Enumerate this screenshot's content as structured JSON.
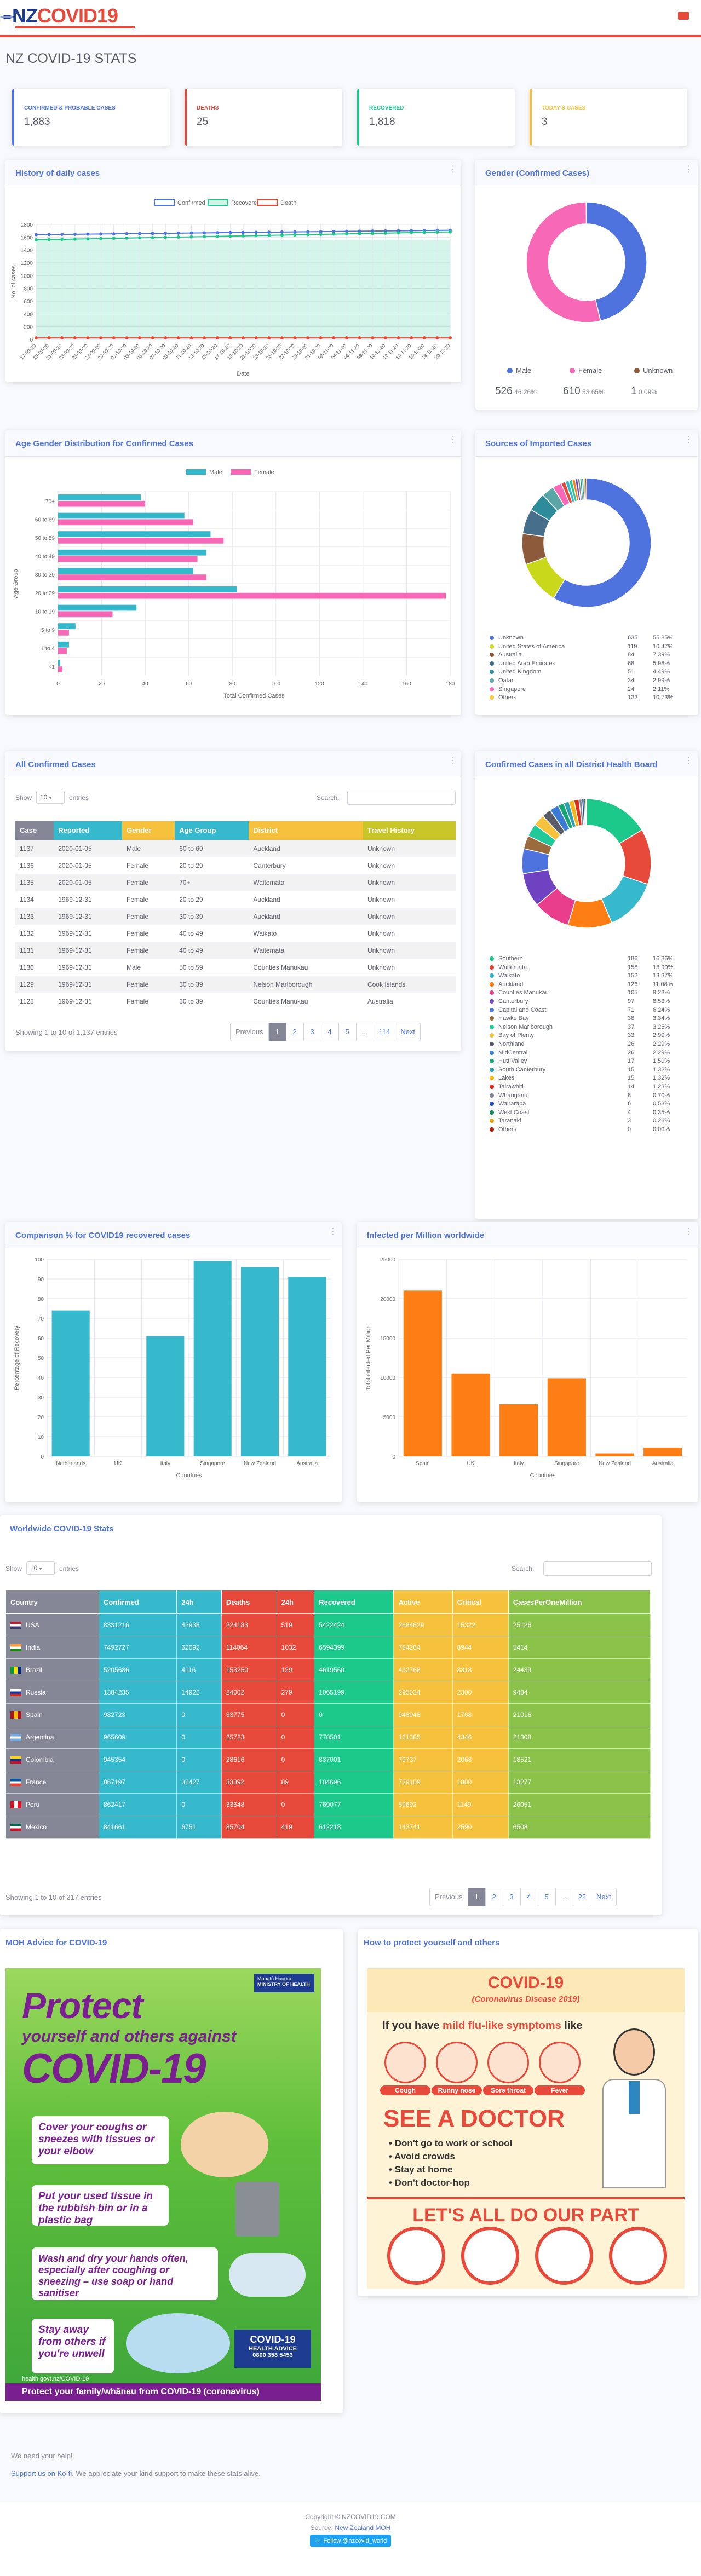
{
  "brand": {
    "nz": "NZ",
    "covid": "COVID19",
    "logo_icon": "fern-icon",
    "flag_icon": "flag-icon"
  },
  "page_title": "NZ COVID-19 STATS",
  "stats": [
    {
      "label": "CONFIRMED & PROBABLE CASES",
      "value": "1,883",
      "color": "#4e73df"
    },
    {
      "label": "DEATHS",
      "value": "25",
      "color": "#e74a3b"
    },
    {
      "label": "RECOVERED",
      "value": "1,818",
      "color": "#1cc88a"
    },
    {
      "label": "TODAY'S CASES",
      "value": "3",
      "color": "#f6c23e"
    }
  ],
  "daily": {
    "title": "History of daily cases",
    "legend": [
      "Confirmed",
      "Recovered",
      "Death"
    ],
    "xlabel": "Date",
    "ylabel": "No. of cases",
    "yticks": [
      "0",
      "200",
      "400",
      "600",
      "800",
      "1000",
      "1200",
      "1400",
      "1600",
      "1800"
    ],
    "xticks": [
      "17-09-20",
      "19-09-20",
      "21-09-20",
      "23-09-20",
      "25-09-20",
      "27-09-20",
      "29-09-20",
      "01-10-20",
      "03-10-20",
      "05-10-20",
      "07-10-20",
      "09-10-20",
      "11-10-20",
      "13-10-20",
      "15-10-20",
      "17-10-20",
      "19-10-20",
      "21-10-20",
      "23-10-20",
      "25-10-20",
      "27-10-20",
      "29-10-20",
      "31-10-20",
      "02-11-20",
      "04-11-20",
      "06-11-20",
      "08-11-20",
      "10-11-20",
      "12-11-20",
      "14-11-20",
      "16-11-20",
      "18-11-20",
      "20-11-20"
    ]
  },
  "gender": {
    "title": "Gender (Confirmed Cases)",
    "items": [
      {
        "name": "Male",
        "count": "526",
        "pct": "46.26%",
        "color": "#4e73df"
      },
      {
        "name": "Female",
        "count": "610",
        "pct": "53.65%",
        "color": "#f769b6"
      },
      {
        "name": "Unknown",
        "count": "1",
        "pct": "0.09%",
        "color": "#8e5a3c"
      }
    ]
  },
  "agegender": {
    "title": "Age Gender Distribution for Confirmed Cases",
    "legend": [
      "Male",
      "Female"
    ],
    "xlabel": "Total Confirmed Cases",
    "ylabel": "Age Group",
    "xticks": [
      "0",
      "20",
      "40",
      "60",
      "80",
      "100",
      "120",
      "140",
      "160",
      "180"
    ],
    "groups": [
      "70+",
      "60 to 69",
      "50 to 59",
      "40 to 49",
      "30 to 39",
      "20 to 29",
      "10 to 19",
      "5 to 9",
      "1 to 4",
      "<1"
    ]
  },
  "imported": {
    "title": "Sources of Imported Cases",
    "items": [
      {
        "name": "Unknown",
        "count": "635",
        "pct": "55.85%",
        "color": "#4e73df"
      },
      {
        "name": "United States of America",
        "count": "119",
        "pct": "10.47%",
        "color": "#c9d81a"
      },
      {
        "name": "Australia",
        "count": "84",
        "pct": "7.39%",
        "color": "#8e5a3c"
      },
      {
        "name": "United Arab Emirates",
        "count": "68",
        "pct": "5.98%",
        "color": "#476f8b"
      },
      {
        "name": "United Kingdom",
        "count": "51",
        "pct": "4.49%",
        "color": "#2e8b9a"
      },
      {
        "name": "Qatar",
        "count": "34",
        "pct": "2.99%",
        "color": "#5aa6a6"
      },
      {
        "name": "Singapore",
        "count": "24",
        "pct": "2.11%",
        "color": "#f769b6"
      },
      {
        "name": "Others",
        "count": "122",
        "pct": "10.73%",
        "color": "#f6c23e"
      }
    ]
  },
  "cases": {
    "title": "All Confirmed Cases",
    "show": "Show",
    "show_value": "10",
    "entries": "entries",
    "search": "Search:",
    "columns": [
      "Case",
      "Reported",
      "Gender",
      "Age Group",
      "District",
      "Travel History"
    ],
    "rows": [
      [
        "1137",
        "2020-01-05",
        "Male",
        "60 to 69",
        "Auckland",
        "Unknown"
      ],
      [
        "1136",
        "2020-01-05",
        "Female",
        "20 to 29",
        "Canterbury",
        "Unknown"
      ],
      [
        "1135",
        "2020-01-05",
        "Female",
        "70+",
        "Waitemata",
        "Unknown"
      ],
      [
        "1134",
        "1969-12-31",
        "Female",
        "20 to 29",
        "Auckland",
        "Unknown"
      ],
      [
        "1133",
        "1969-12-31",
        "Female",
        "30 to 39",
        "Auckland",
        "Unknown"
      ],
      [
        "1132",
        "1969-12-31",
        "Female",
        "40 to 49",
        "Waikato",
        "Unknown"
      ],
      [
        "1131",
        "1969-12-31",
        "Female",
        "40 to 49",
        "Waitemata",
        "Unknown"
      ],
      [
        "1130",
        "1969-12-31",
        "Male",
        "50 to 59",
        "Counties Manukau",
        "Unknown"
      ],
      [
        "1129",
        "1969-12-31",
        "Female",
        "30 to 39",
        "Nelson Marlborough",
        "Cook Islands"
      ],
      [
        "1128",
        "1969-12-31",
        "Female",
        "30 to 39",
        "Counties Manukau",
        "Australia"
      ]
    ],
    "info": "Showing 1 to 10 of 1,137 entries",
    "pager": [
      "Previous",
      "1",
      "2",
      "3",
      "4",
      "5",
      "...",
      "114",
      "Next"
    ]
  },
  "dhb": {
    "title": "Confirmed Cases in all District Health Board",
    "items": [
      {
        "name": "Southern",
        "count": "186",
        "pct": "16.36%",
        "color": "#1cc88a"
      },
      {
        "name": "Waitemata",
        "count": "158",
        "pct": "13.90%",
        "color": "#e74a3b"
      },
      {
        "name": "Waikato",
        "count": "152",
        "pct": "13.37%",
        "color": "#36b9cc"
      },
      {
        "name": "Auckland",
        "count": "126",
        "pct": "11.08%",
        "color": "#fd7e14"
      },
      {
        "name": "Counties Manukau",
        "count": "105",
        "pct": "9.23%",
        "color": "#e83e8c"
      },
      {
        "name": "Canterbury",
        "count": "97",
        "pct": "8.53%",
        "color": "#6f42c1"
      },
      {
        "name": "Capital and Coast",
        "count": "71",
        "pct": "6.24%",
        "color": "#4e73df"
      },
      {
        "name": "Hawke Bay",
        "count": "38",
        "pct": "3.34%",
        "color": "#9a6b3c"
      },
      {
        "name": "Nelson Marlborough",
        "count": "37",
        "pct": "3.25%",
        "color": "#20c997"
      },
      {
        "name": "Bay of Plenty",
        "count": "33",
        "pct": "2.90%",
        "color": "#f6c23e"
      },
      {
        "name": "Northland",
        "count": "26",
        "pct": "2.29%",
        "color": "#5a5c69"
      },
      {
        "name": "MidCentral",
        "count": "26",
        "pct": "2.29%",
        "color": "#3a7bd5"
      },
      {
        "name": "Hutt Valley",
        "count": "17",
        "pct": "1.50%",
        "color": "#17a673"
      },
      {
        "name": "South Canterbury",
        "count": "15",
        "pct": "1.32%",
        "color": "#2c9faf"
      },
      {
        "name": "Lakes",
        "count": "15",
        "pct": "1.32%",
        "color": "#f4b619"
      },
      {
        "name": "Tairawhiti",
        "count": "14",
        "pct": "1.23%",
        "color": "#e02d1b"
      },
      {
        "name": "Whanganui",
        "count": "8",
        "pct": "0.70%",
        "color": "#858796"
      },
      {
        "name": "Wairarapa",
        "count": "6",
        "pct": "0.53%",
        "color": "#224abe"
      },
      {
        "name": "West Coast",
        "count": "4",
        "pct": "0.35%",
        "color": "#13855c"
      },
      {
        "name": "Taranaki",
        "count": "3",
        "pct": "0.26%",
        "color": "#dda20a"
      },
      {
        "name": "Others",
        "count": "0",
        "pct": "0.00%",
        "color": "#be2617"
      }
    ]
  },
  "recovered": {
    "title": "Comparison % for COVID19 recovered cases",
    "ylabel": "Percentage of Recovery",
    "xlabel": "Countries",
    "yticks": [
      "0",
      "10",
      "20",
      "30",
      "40",
      "50",
      "60",
      "70",
      "80",
      "90",
      "100"
    ],
    "chart_data": {
      "type": "bar",
      "categories": [
        "Netherlands",
        "UK",
        "Italy",
        "Singapore",
        "New Zealand",
        "Australia"
      ],
      "values": [
        74,
        0,
        61,
        99,
        96,
        91
      ],
      "ylim": [
        0,
        100
      ],
      "ylabel": "Percentage of Recovery",
      "xlabel": "Countries",
      "color": "#36b9cc"
    }
  },
  "permillion": {
    "title": "Infected per Million worldwide",
    "ylabel": "Total infected Per Million",
    "xlabel": "Countries",
    "yticks": [
      "0",
      "5000",
      "10000",
      "15000",
      "20000",
      "25000"
    ],
    "chart_data": {
      "type": "bar",
      "categories": [
        "Spain",
        "UK",
        "Italy",
        "Singapore",
        "New Zealand",
        "Australia"
      ],
      "values": [
        21016,
        10500,
        6600,
        9900,
        380,
        1100
      ],
      "ylim": [
        0,
        25000
      ],
      "ylabel": "Total infected Per Million",
      "xlabel": "Countries",
      "color": "#fd7e14"
    }
  },
  "world": {
    "title": "Worldwide COVID-19 Stats",
    "show": "Show",
    "show_value": "10",
    "entries": "entries",
    "search": "Search:",
    "columns": [
      "Country",
      "Confirmed",
      "24h",
      "Deaths",
      "24h",
      "Recovered",
      "Active",
      "Critical",
      "CasesPerOneMillion"
    ],
    "col_colors": [
      "#858796",
      "#36b9cc",
      "#36b9cc",
      "#e74a3b",
      "#e74a3b",
      "#1cc88a",
      "#f6c23e",
      "#f6c23e",
      "#8bc34a"
    ],
    "rows": [
      [
        "USA",
        "8331216",
        "42938",
        "224183",
        "519",
        "5422424",
        "2684629",
        "15322",
        "25126"
      ],
      [
        "India",
        "7492727",
        "62092",
        "114064",
        "1032",
        "6594399",
        "784264",
        "8944",
        "5414"
      ],
      [
        "Brazil",
        "5205686",
        "4116",
        "153250",
        "129",
        "4619560",
        "432768",
        "8318",
        "24439"
      ],
      [
        "Russia",
        "1384235",
        "14922",
        "24002",
        "279",
        "1065199",
        "295034",
        "2300",
        "9484"
      ],
      [
        "Spain",
        "982723",
        "0",
        "33775",
        "0",
        "0",
        "948948",
        "1768",
        "21016"
      ],
      [
        "Argentina",
        "965609",
        "0",
        "25723",
        "0",
        "778501",
        "161385",
        "4346",
        "21308"
      ],
      [
        "Colombia",
        "945354",
        "0",
        "28616",
        "0",
        "837001",
        "79737",
        "2068",
        "18521"
      ],
      [
        "France",
        "867197",
        "32427",
        "33392",
        "89",
        "104696",
        "729109",
        "1800",
        "13277"
      ],
      [
        "Peru",
        "862417",
        "0",
        "33648",
        "0",
        "769077",
        "59692",
        "1149",
        "26051"
      ],
      [
        "Mexico",
        "841661",
        "6751",
        "85704",
        "419",
        "612218",
        "143741",
        "2590",
        "6508"
      ]
    ],
    "flags": [
      "flag-usa-icon",
      "flag-india-icon",
      "flag-brazil-icon",
      "flag-russia-icon",
      "flag-spain-icon",
      "flag-argentina-icon",
      "flag-colombia-icon",
      "flag-france-icon",
      "flag-peru-icon",
      "flag-mexico-icon"
    ],
    "info": "Showing 1 to 10 of 217 entries",
    "pager": [
      "Previous",
      "1",
      "2",
      "3",
      "4",
      "5",
      "...",
      "22",
      "Next"
    ]
  },
  "moh": {
    "title": "MOH Advice for COVID-19",
    "poster": {
      "logo": "Manatū Hauora",
      "logo_sub": "MINISTRY OF HEALTH",
      "head1": "Protect",
      "head2": "yourself and others against",
      "head3": "COVID-19",
      "tips": [
        "Cover your coughs or sneezes with tissues or your elbow",
        "Put your used tissue in the rubbish bin or in a plastic bag",
        "Wash and dry your hands often, especially after coughing or sneezing – use soap or hand sanitiser",
        "Stay away from others if you're unwell"
      ],
      "advice_title": "COVID-19",
      "advice_sub": "HEALTH ADVICE",
      "advice_phone": "0800 358 5453",
      "url": "health.govt.nz/COVID-19",
      "footer": "Protect your family/whānau from COVID-19 (coronavirus)"
    }
  },
  "protect": {
    "title": "How to protect yourself and others",
    "poster": {
      "head": "COVID-19",
      "sub": "(Coronavirus Disease 2019)",
      "intro_a": "If you have ",
      "intro_b": "mild flu-like symptoms",
      "intro_c": " like",
      "symptoms": [
        "Cough",
        "Runny nose",
        "Sore throat",
        "Fever"
      ],
      "see": "SEE A DOCTOR",
      "bullets": [
        "• Don't go to work or school",
        "• Avoid crowds",
        "• Stay at home",
        "• Don't doctor-hop"
      ],
      "part": "LET'S ALL DO OUR PART"
    }
  },
  "footer": {
    "help": "We need your help!",
    "support_link": "Support us on Ko-fi",
    "support_text": ". We appreciate your kind support to make these stats alive.",
    "copyright": "Copyright © NZCOVID19.COM",
    "source_label": "Source: ",
    "source_link": "New Zealand MOH",
    "follow": "Follow @nzcovid_world",
    "twitter_icon": "twitter-icon"
  }
}
